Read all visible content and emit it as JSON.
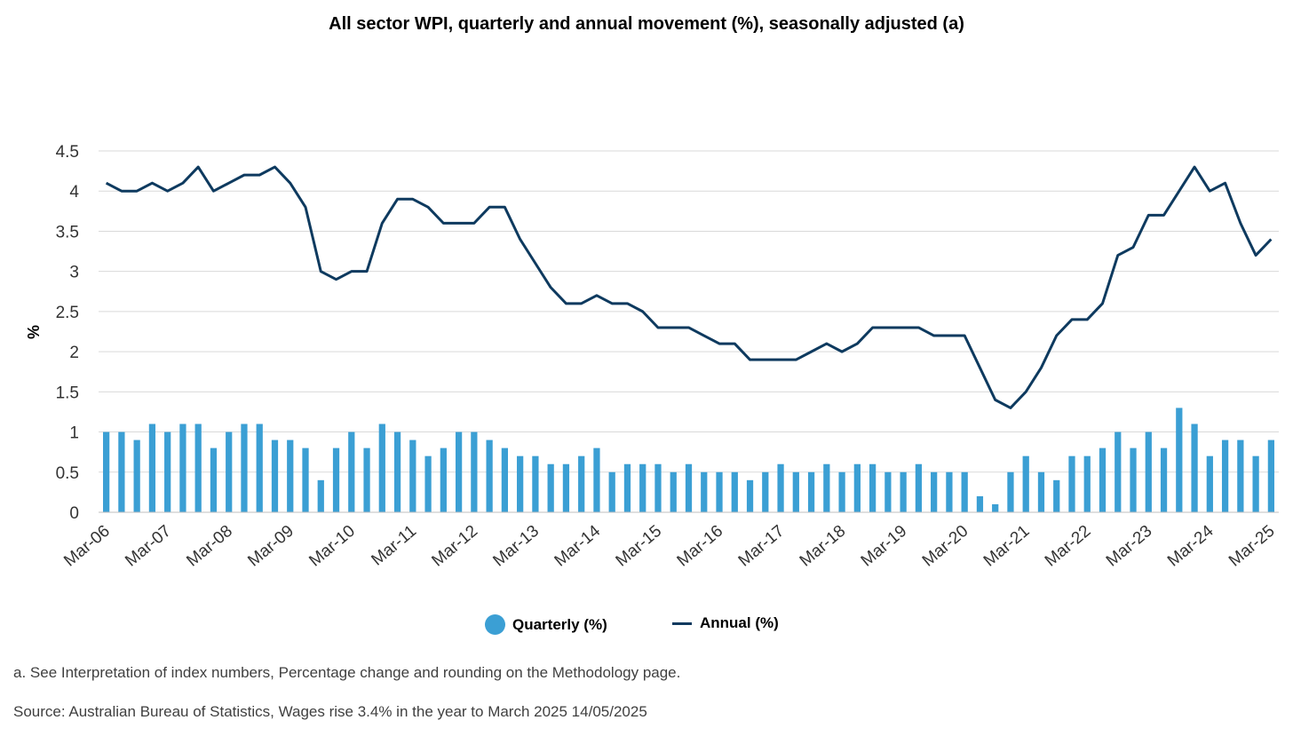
{
  "chart_data": {
    "type": "bar",
    "title": "All sector WPI, quarterly and annual movement (%), seasonally adjusted (a)",
    "xlabel": "",
    "ylabel": "%",
    "ylim": [
      0,
      4.5
    ],
    "yticks": [
      "0",
      "0.5",
      "1",
      "1.5",
      "2",
      "2.5",
      "3",
      "3.5",
      "4",
      "4.5"
    ],
    "x_tick_labels": [
      "Mar-06",
      "Mar-07",
      "Mar-08",
      "Mar-09",
      "Mar-10",
      "Mar-11",
      "Mar-12",
      "Mar-13",
      "Mar-14",
      "Mar-15",
      "Mar-16",
      "Mar-17",
      "Mar-18",
      "Mar-19",
      "Mar-20",
      "Mar-21",
      "Mar-22",
      "Mar-23",
      "Mar-24",
      "Mar-25"
    ],
    "legend_position": "bottom",
    "series": [
      {
        "name": "Quarterly (%)",
        "type": "bar",
        "color": "#3b9fd4",
        "values": [
          1.0,
          1.0,
          0.9,
          1.1,
          1.0,
          1.1,
          1.1,
          0.8,
          1.0,
          1.1,
          1.1,
          0.9,
          0.9,
          0.8,
          0.4,
          0.8,
          1.0,
          0.8,
          1.1,
          1.0,
          0.9,
          0.7,
          0.8,
          1.0,
          1.0,
          0.9,
          0.8,
          0.7,
          0.7,
          0.6,
          0.6,
          0.7,
          0.8,
          0.5,
          0.6,
          0.6,
          0.6,
          0.5,
          0.6,
          0.5,
          0.5,
          0.5,
          0.4,
          0.5,
          0.6,
          0.5,
          0.5,
          0.6,
          0.5,
          0.6,
          0.6,
          0.5,
          0.5,
          0.6,
          0.5,
          0.5,
          0.5,
          0.2,
          0.1,
          0.5,
          0.7,
          0.5,
          0.4,
          0.7,
          0.7,
          0.8,
          1.0,
          0.8,
          1.0,
          0.8,
          1.3,
          1.1,
          0.7,
          0.9,
          0.9,
          0.7,
          0.9
        ]
      },
      {
        "name": "Annual (%)",
        "type": "line",
        "color": "#0e3a5f",
        "values": [
          4.1,
          4.0,
          4.0,
          4.1,
          4.0,
          4.1,
          4.3,
          4.0,
          4.1,
          4.2,
          4.2,
          4.3,
          4.1,
          3.8,
          3.0,
          2.9,
          3.0,
          3.0,
          3.6,
          3.9,
          3.9,
          3.8,
          3.6,
          3.6,
          3.6,
          3.8,
          3.8,
          3.4,
          3.1,
          2.8,
          2.6,
          2.6,
          2.7,
          2.6,
          2.6,
          2.5,
          2.3,
          2.3,
          2.3,
          2.2,
          2.1,
          2.1,
          1.9,
          1.9,
          1.9,
          1.9,
          2.0,
          2.1,
          2.0,
          2.1,
          2.3,
          2.3,
          2.3,
          2.3,
          2.2,
          2.2,
          2.2,
          1.8,
          1.4,
          1.3,
          1.5,
          1.8,
          2.2,
          2.4,
          2.4,
          2.6,
          3.2,
          3.3,
          3.7,
          3.7,
          4.0,
          4.3,
          4.0,
          4.1,
          3.6,
          3.2,
          3.4
        ]
      }
    ]
  },
  "legend": {
    "quarterly_label": "Quarterly (%)",
    "annual_label": "Annual (%)"
  },
  "footnotes": {
    "a": "a. See Interpretation of index numbers, Percentage change and rounding on the Methodology page.",
    "source": "Source: Australian Bureau of Statistics, Wages rise 3.4% in the year to March 2025 14/05/2025"
  }
}
